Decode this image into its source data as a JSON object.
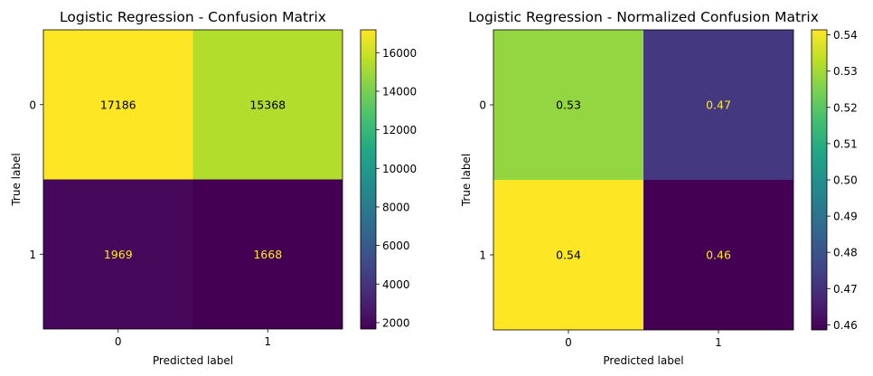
{
  "chart_data": [
    {
      "type": "heatmap",
      "title": "Logistic Regression - Confusion Matrix",
      "xlabel": "Predicted label",
      "ylabel": "True label",
      "x_categories": [
        "0",
        "1"
      ],
      "y_categories": [
        "0",
        "1"
      ],
      "values": [
        [
          17186,
          15368
        ],
        [
          1969,
          1668
        ]
      ],
      "cell_labels": [
        [
          "17186",
          "15368"
        ],
        [
          "1969",
          "1668"
        ]
      ],
      "colormap": "viridis",
      "color_range": [
        1668,
        17186
      ],
      "colorbar_ticks": [
        2000,
        4000,
        6000,
        8000,
        10000,
        12000,
        14000,
        16000
      ],
      "colorbar_tick_labels": [
        "2000",
        "4000",
        "6000",
        "8000",
        "10000",
        "12000",
        "14000",
        "16000"
      ]
    },
    {
      "type": "heatmap",
      "title": "Logistic Regression - Normalized Confusion Matrix",
      "xlabel": "Predicted label",
      "ylabel": "True label",
      "x_categories": [
        "0",
        "1"
      ],
      "y_categories": [
        "0",
        "1"
      ],
      "values": [
        [
          0.5279,
          0.4721
        ],
        [
          0.5414,
          0.4586
        ]
      ],
      "cell_labels": [
        [
          "0.53",
          "0.47"
        ],
        [
          "0.54",
          "0.46"
        ]
      ],
      "colormap": "viridis",
      "color_range": [
        0.4586,
        0.5414
      ],
      "colorbar_ticks": [
        0.46,
        0.47,
        0.48,
        0.49,
        0.5,
        0.51,
        0.52,
        0.53,
        0.54
      ],
      "colorbar_tick_labels": [
        "0.46",
        "0.47",
        "0.48",
        "0.49",
        "0.50",
        "0.51",
        "0.52",
        "0.53",
        "0.54"
      ]
    }
  ]
}
